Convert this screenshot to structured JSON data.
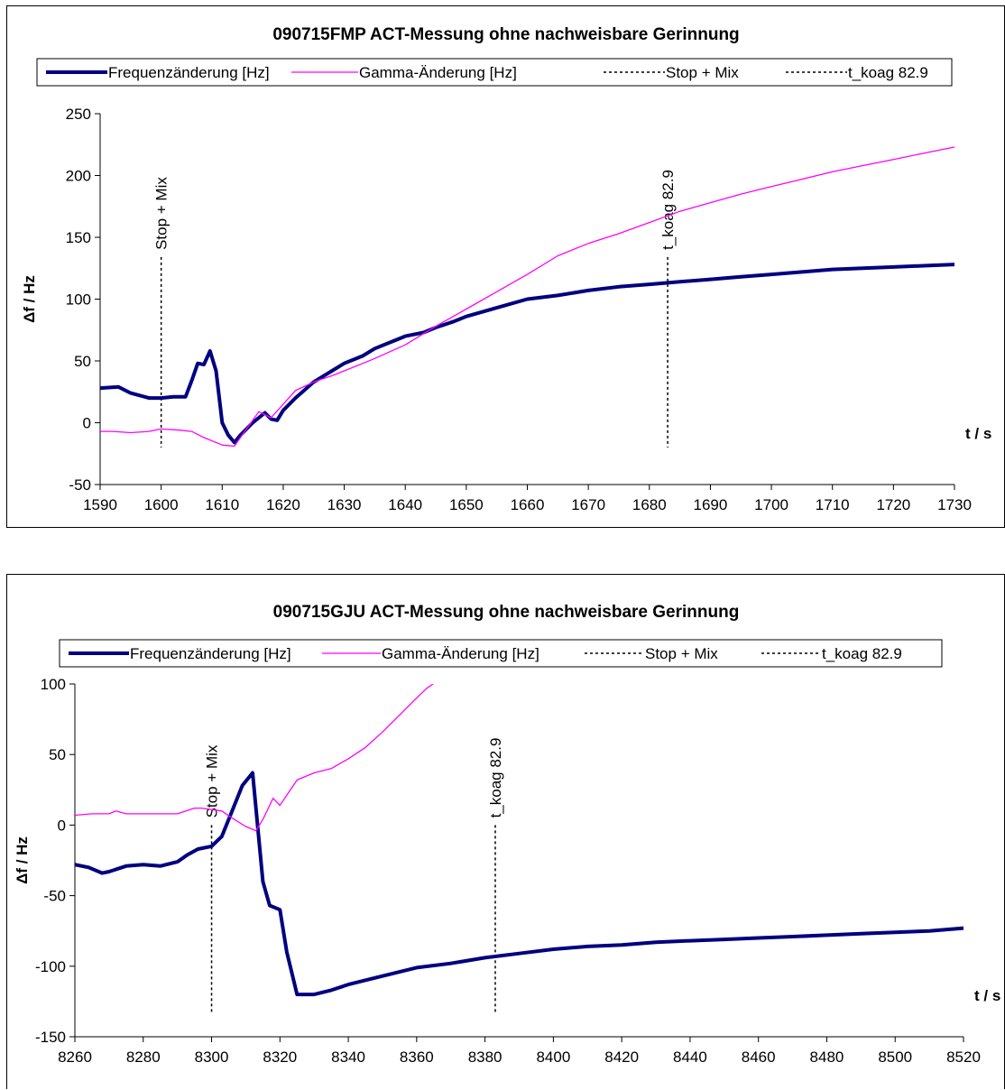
{
  "colors": {
    "frequency": "#000080",
    "gamma": "#ff00ff",
    "marker": "#000000"
  },
  "chart_data": [
    {
      "type": "line",
      "title": "090715FMP ACT-Messung ohne nachweisbare Gerinnung",
      "xlabel": "t / s",
      "ylabel": "Δf / Hz",
      "xlim": [
        1590,
        1730
      ],
      "ylim": [
        -50,
        250
      ],
      "xticks": [
        "1590",
        "1600",
        "1610",
        "1620",
        "1630",
        "1640",
        "1650",
        "1660",
        "1670",
        "1680",
        "1690",
        "1700",
        "1710",
        "1720",
        "1730"
      ],
      "yticks": [
        "-50",
        "0",
        "50",
        "100",
        "150",
        "200",
        "250"
      ],
      "legend": [
        "Frequenzänderung [Hz]",
        "Gamma-Änderung [Hz]",
        "Stop + Mix",
        "t_koag  82.9"
      ],
      "markers": [
        {
          "name": "Stop + Mix",
          "x": 1600,
          "y_top": 134,
          "y_bottom": -20
        },
        {
          "name": "t_koag  82.9",
          "x": 1683,
          "y_top": 134,
          "y_bottom": -20
        }
      ],
      "series": [
        {
          "name": "Frequenzänderung [Hz]",
          "x": [
            1590,
            1593,
            1595,
            1598,
            1600,
            1602,
            1604,
            1605,
            1606,
            1607,
            1608,
            1609,
            1610,
            1611,
            1612,
            1613,
            1614,
            1615,
            1617,
            1618,
            1619,
            1620,
            1622,
            1625,
            1628,
            1630,
            1633,
            1635,
            1638,
            1640,
            1643,
            1645,
            1648,
            1650,
            1655,
            1660,
            1665,
            1670,
            1675,
            1680,
            1685,
            1690,
            1695,
            1700,
            1705,
            1710,
            1715,
            1720,
            1725,
            1730
          ],
          "y": [
            28,
            29,
            24,
            20,
            20,
            21,
            21,
            34,
            48,
            47,
            58,
            42,
            0,
            -10,
            -16,
            -10,
            -5,
            0,
            8,
            3,
            2,
            10,
            20,
            33,
            42,
            48,
            54,
            60,
            66,
            70,
            73,
            77,
            82,
            86,
            93,
            100,
            103,
            107,
            110,
            112,
            114,
            116,
            118,
            120,
            122,
            124,
            125,
            126,
            127,
            128
          ]
        },
        {
          "name": "Gamma-Änderung [Hz]",
          "x": [
            1590,
            1592,
            1595,
            1598,
            1600,
            1603,
            1605,
            1607,
            1610,
            1612,
            1614,
            1616,
            1618,
            1620,
            1622,
            1625,
            1628,
            1630,
            1635,
            1640,
            1645,
            1650,
            1655,
            1660,
            1665,
            1670,
            1675,
            1680,
            1685,
            1690,
            1695,
            1700,
            1705,
            1710,
            1715,
            1720,
            1725,
            1730
          ],
          "y": [
            -7,
            -7,
            -8,
            -7,
            -5,
            -6,
            -7,
            -12,
            -18,
            -19,
            -5,
            9,
            4,
            15,
            26,
            33,
            38,
            42,
            52,
            63,
            78,
            92,
            106,
            120,
            135,
            145,
            153,
            162,
            171,
            178,
            185,
            191,
            197,
            203,
            208,
            213,
            218,
            223
          ]
        }
      ]
    },
    {
      "type": "line",
      "title": "090715GJU ACT-Messung ohne nachweisbare Gerinnung",
      "xlabel": "t / s",
      "ylabel": "Δf / Hz",
      "xlim": [
        8260,
        8520
      ],
      "ylim": [
        -150,
        100
      ],
      "xticks": [
        "8260",
        "8280",
        "8300",
        "8320",
        "8340",
        "8360",
        "8380",
        "8400",
        "8420",
        "8440",
        "8460",
        "8480",
        "8500",
        "8520"
      ],
      "yticks": [
        "-150",
        "-100",
        "-50",
        "0",
        "50",
        "100"
      ],
      "legend": [
        "Frequenzänderung [Hz]",
        "Gamma-Änderung [Hz]",
        "Stop + Mix",
        "t_koag  82.9"
      ],
      "markers": [
        {
          "name": "Stop + Mix",
          "x": 8300,
          "y_top": 0,
          "y_bottom": -133
        },
        {
          "name": "t_koag  82.9",
          "x": 8383,
          "y_top": 0,
          "y_bottom": -133
        }
      ],
      "series": [
        {
          "name": "Frequenzänderung [Hz]",
          "x": [
            8260,
            8264,
            8268,
            8270,
            8275,
            8280,
            8285,
            8290,
            8293,
            8296,
            8300,
            8303,
            8306,
            8309,
            8312,
            8315,
            8317,
            8320,
            8322,
            8325,
            8330,
            8335,
            8340,
            8350,
            8360,
            8370,
            8380,
            8390,
            8400,
            8410,
            8420,
            8430,
            8440,
            8450,
            8460,
            8470,
            8480,
            8490,
            8500,
            8510,
            8520
          ],
          "y": [
            -28,
            -30,
            -34,
            -33,
            -29,
            -28,
            -29,
            -26,
            -21,
            -17,
            -15,
            -8,
            10,
            28,
            37,
            -40,
            -57,
            -60,
            -90,
            -120,
            -120,
            -117,
            -113,
            -107,
            -101,
            -98,
            -94,
            -91,
            -88,
            -86,
            -85,
            -83,
            -82,
            -81,
            -80,
            -79,
            -78,
            -77,
            -76,
            -75,
            -73
          ]
        },
        {
          "name": "Gamma-Änderung [Hz]",
          "x": [
            8260,
            8265,
            8270,
            8272,
            8275,
            8280,
            8285,
            8290,
            8295,
            8297,
            8300,
            8303,
            8306,
            8310,
            8313,
            8315,
            8318,
            8320,
            8325,
            8330,
            8335,
            8340,
            8345,
            8350,
            8355,
            8360,
            8363,
            8366
          ],
          "y": [
            7,
            8,
            8,
            10,
            8,
            8,
            8,
            8,
            12,
            12,
            11,
            10,
            5,
            -1,
            -4,
            4,
            19,
            14,
            32,
            37,
            40,
            47,
            55,
            66,
            78,
            90,
            97,
            102
          ]
        }
      ]
    }
  ]
}
